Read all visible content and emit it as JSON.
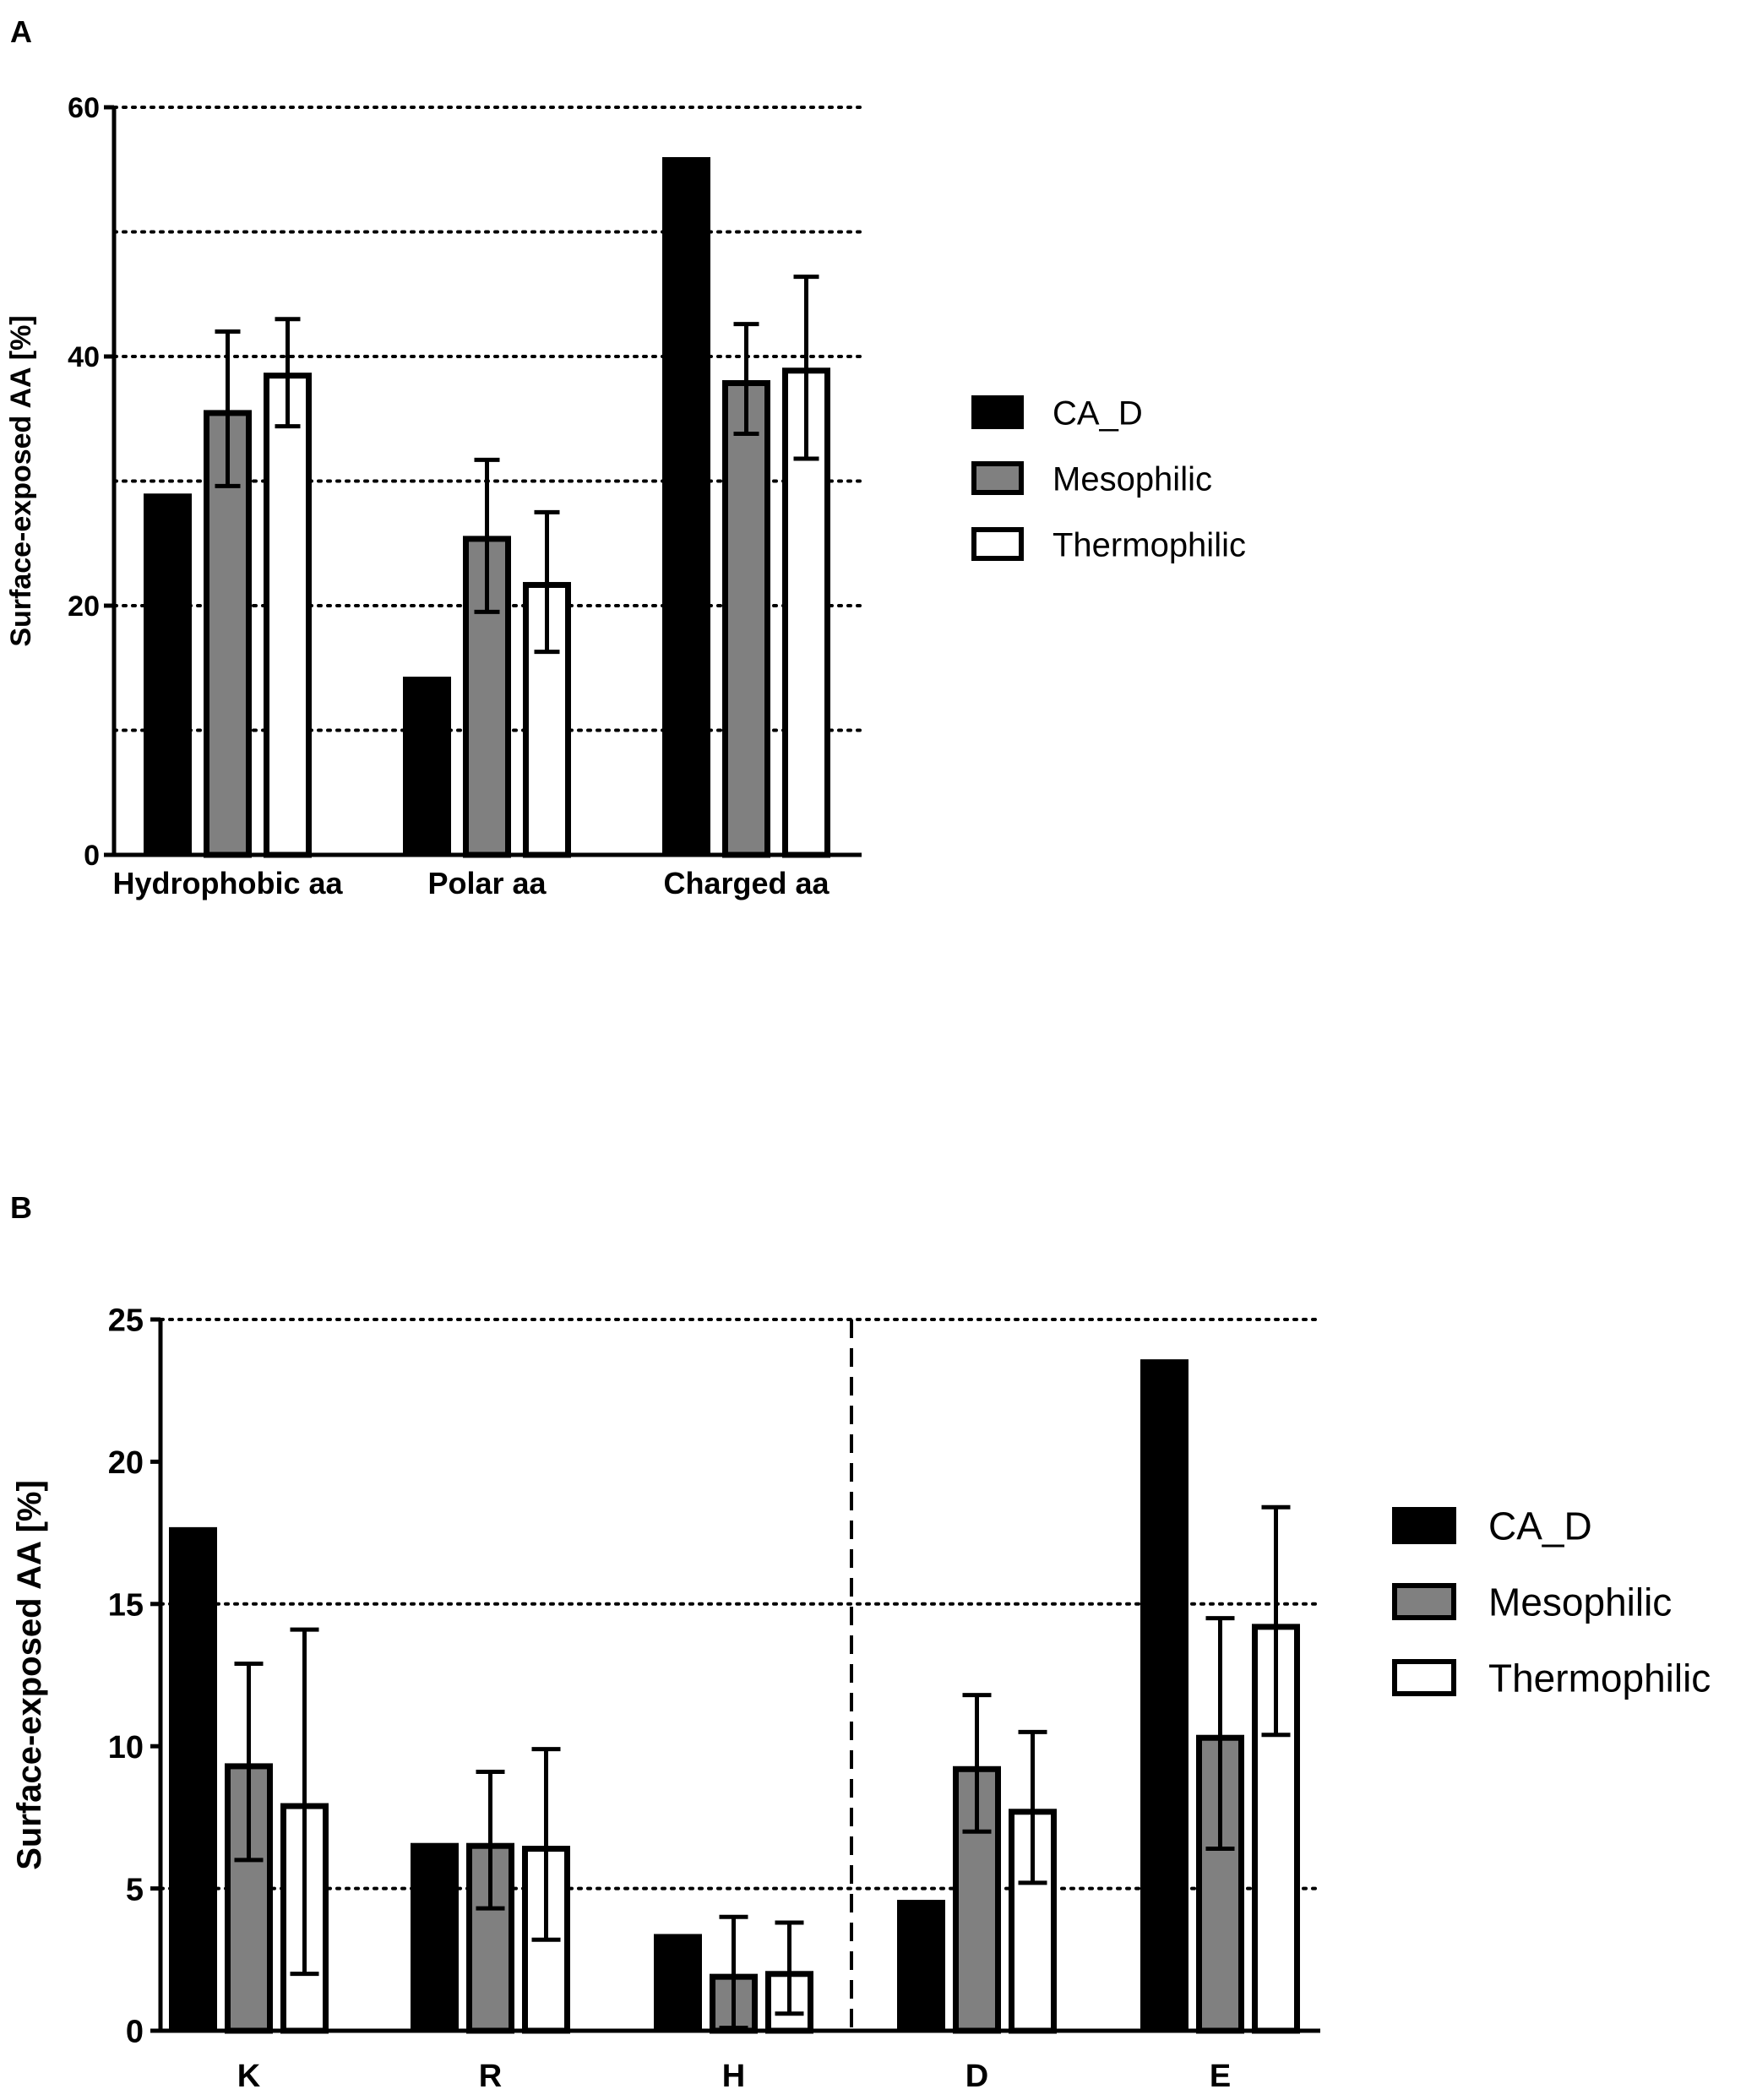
{
  "chart_data": [
    {
      "panel_label": "A",
      "type": "bar",
      "title": "",
      "xlabel": "",
      "ylabel": "Surface-exposed AA [%]",
      "ylim": [
        0,
        60
      ],
      "yticks": [
        0,
        20,
        40,
        60
      ],
      "gridlines": [
        10,
        20,
        30,
        40,
        50,
        60
      ],
      "grid_style": "dotted-horizontal",
      "categories": [
        "Hydrophobic aa",
        "Polar aa",
        "Charged aa"
      ],
      "series": [
        {
          "name": "CA_D",
          "fill": "#000000",
          "values": [
            29,
            14.3,
            56
          ],
          "errors": [
            null,
            null,
            null
          ]
        },
        {
          "name": "Mesophilic",
          "fill": "#808080",
          "values": [
            35.7,
            25.6,
            38.1
          ],
          "errors": [
            [
              29.6,
              42
            ],
            [
              19.5,
              31.7
            ],
            [
              33.8,
              42.6
            ]
          ]
        },
        {
          "name": "Thermophilic",
          "fill": "#ffffff",
          "values": [
            38.7,
            21.9,
            39.1
          ],
          "errors": [
            [
              34.4,
              43
            ],
            [
              16.3,
              27.5
            ],
            [
              31.8,
              46.4
            ]
          ]
        }
      ],
      "legend": "right"
    },
    {
      "panel_label": "B",
      "type": "bar",
      "title": "",
      "xlabel": "",
      "ylabel": "Surface-exposed AA [%]",
      "ylim": [
        0,
        25
      ],
      "yticks": [
        0,
        5,
        10,
        15,
        20,
        25
      ],
      "gridlines": [
        5,
        15,
        25
      ],
      "grid_style": "dotted-horizontal",
      "separator": "dashed vertical line between H and D",
      "categories": [
        "K",
        "R",
        "H",
        "D",
        "E"
      ],
      "series": [
        {
          "name": "CA_D",
          "fill": "#000000",
          "values": [
            17.7,
            6.6,
            3.4,
            4.6,
            23.6
          ],
          "errors": [
            null,
            null,
            null,
            null,
            null
          ]
        },
        {
          "name": "Mesophilic",
          "fill": "#808080",
          "values": [
            9.4,
            6.6,
            2,
            9.3,
            10.4
          ],
          "errors": [
            [
              6,
              12.9
            ],
            [
              4.3,
              9.1
            ],
            [
              0.1,
              4
            ],
            [
              7,
              11.8
            ],
            [
              6.4,
              14.5
            ]
          ]
        },
        {
          "name": "Thermophilic",
          "fill": "#ffffff",
          "values": [
            8,
            6.5,
            2.1,
            7.8,
            14.3
          ],
          "errors": [
            [
              2,
              14.1
            ],
            [
              3.2,
              9.9
            ],
            [
              0.6,
              3.8
            ],
            [
              5.2,
              10.5
            ],
            [
              10.4,
              18.4
            ]
          ]
        }
      ],
      "legend": "right"
    }
  ]
}
